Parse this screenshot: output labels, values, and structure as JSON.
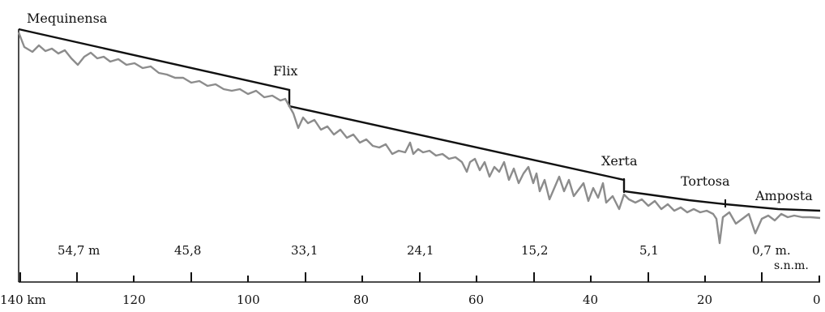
{
  "towns": [
    "Mequinensa",
    "Flix",
    "Xerta",
    "Tortosa",
    "Amposta"
  ],
  "elevations": [
    "54,7 m",
    "45,8",
    "33,1",
    "24,1",
    "15,2",
    "5,1",
    "0,7 m."
  ],
  "elevation_unit": "s.n.m.",
  "distance_ticks": [
    "140 km",
    "120",
    "100",
    "80",
    "60",
    "40",
    "20",
    "0"
  ],
  "colors": {
    "profile_line": "#111111",
    "riverbed": "#8c8c8c"
  }
}
